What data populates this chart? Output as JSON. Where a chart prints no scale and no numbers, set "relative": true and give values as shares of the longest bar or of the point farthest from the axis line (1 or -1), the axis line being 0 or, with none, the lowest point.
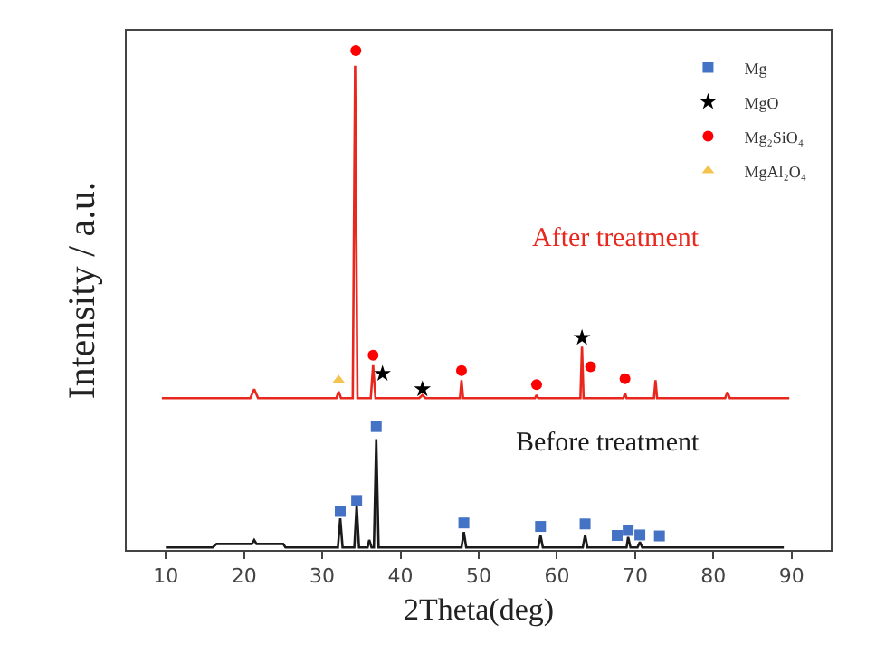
{
  "chart_data": {
    "type": "line",
    "relative": true,
    "xlabel": "2Theta(deg)",
    "ylabel": "Intensity / a.u.",
    "xlim": [
      5,
      95
    ],
    "xticks": [
      10,
      20,
      30,
      40,
      50,
      60,
      70,
      80,
      90
    ],
    "legend": "top right",
    "grid": false,
    "series": [
      {
        "name": "After treatment",
        "marker": "none",
        "color": "#e8281e",
        "x": [
          9.5,
          20.8,
          21.3,
          21.8,
          31.8,
          32.1,
          32.4,
          33.9,
          34.2,
          34.5,
          36.2,
          36.5,
          36.8,
          42.4,
          42.8,
          43.2,
          47.6,
          47.8,
          48.0,
          57.2,
          57.4,
          57.6,
          63.0,
          63.2,
          63.4,
          68.5,
          68.7,
          68.9,
          72.4,
          72.6,
          72.8,
          81.5,
          81.8,
          82.1,
          89.7
        ],
        "values": [
          0.304,
          0.304,
          0.322,
          0.304,
          0.304,
          0.317,
          0.304,
          0.304,
          0.97,
          0.304,
          0.304,
          0.37,
          0.304,
          0.304,
          0.31,
          0.304,
          0.304,
          0.34,
          0.304,
          0.304,
          0.31,
          0.304,
          0.304,
          0.407,
          0.304,
          0.304,
          0.314,
          0.304,
          0.304,
          0.34,
          0.304,
          0.304,
          0.316,
          0.304,
          0.304
        ]
      },
      {
        "name": "Before treatment",
        "marker": "none",
        "color": "#1a1a1a",
        "x": [
          10,
          16,
          16.5,
          21,
          21.3,
          21.6,
          25,
          25.3,
          32,
          32.3,
          32.6,
          34.1,
          34.4,
          34.7,
          35.8,
          36.0,
          36.3,
          36.6,
          36.9,
          37.2,
          47.8,
          48.1,
          48.4,
          57.6,
          57.9,
          58.2,
          63.3,
          63.6,
          63.9,
          68.9,
          69.1,
          69.4,
          70.3,
          70.6,
          70.9,
          89
        ],
        "values": [
          0.005,
          0.005,
          0.012,
          0.012,
          0.02,
          0.012,
          0.012,
          0.005,
          0.005,
          0.063,
          0.005,
          0.005,
          0.09,
          0.005,
          0.005,
          0.02,
          0.005,
          0.005,
          0.222,
          0.005,
          0.005,
          0.036,
          0.005,
          0.005,
          0.029,
          0.005,
          0.005,
          0.03,
          0.005,
          0.005,
          0.026,
          0.005,
          0.005,
          0.016,
          0.005,
          0.005
        ]
      },
      {
        "name": "Mg",
        "type": "scatter",
        "marker": "square",
        "color": "#4472c4",
        "x": [
          32.3,
          34.4,
          36.9,
          48.1,
          57.9,
          63.6,
          67.7,
          69.1,
          70.6,
          73.1
        ],
        "values": [
          0.077,
          0.099,
          0.247,
          0.054,
          0.047,
          0.052,
          0.029,
          0.039,
          0.03,
          0.028
        ]
      },
      {
        "name": "MgO",
        "type": "scatter",
        "marker": "star",
        "color": "#000000",
        "x": [
          37.7,
          42.8,
          63.2
        ],
        "values": [
          0.353,
          0.322,
          0.425
        ]
      },
      {
        "name": "Mg₂SiO₄",
        "type": "scatter",
        "marker": "circle",
        "color": "#ff0000",
        "x": [
          34.3,
          36.5,
          47.8,
          57.4,
          64.3,
          68.7
        ],
        "values": [
          1.0,
          0.39,
          0.359,
          0.331,
          0.367,
          0.343
        ]
      },
      {
        "name": "MgAl₂O₄",
        "type": "scatter",
        "marker": "triangle",
        "color": "#f5c350",
        "x": [
          32.1
        ],
        "values": [
          0.34
        ]
      }
    ]
  }
}
